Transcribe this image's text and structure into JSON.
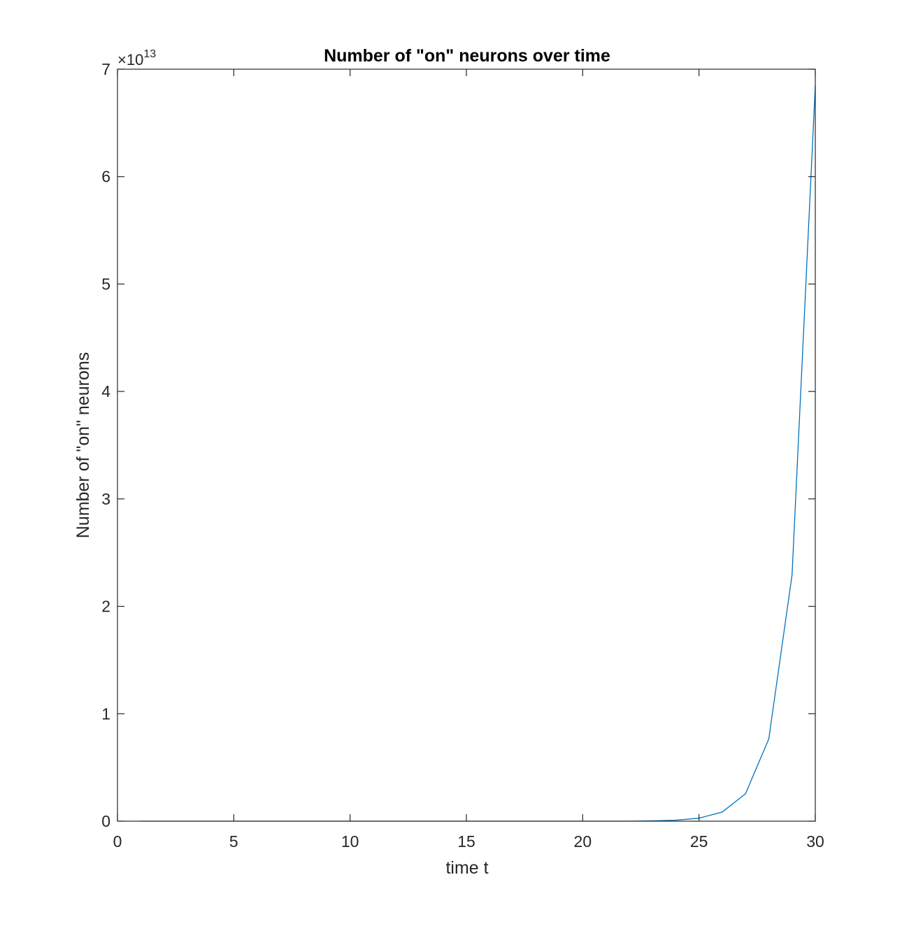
{
  "chart_data": {
    "type": "line",
    "title": "Number of \"on\" neurons over time",
    "xlabel": "time t",
    "ylabel": "Number of \"on\" neurons",
    "xlim": [
      0,
      30
    ],
    "ylim": [
      0,
      70000000000000
    ],
    "xticks": [
      0,
      5,
      10,
      15,
      20,
      25,
      30
    ],
    "xtick_labels": [
      "0",
      "5",
      "10",
      "15",
      "20",
      "25",
      "30"
    ],
    "yticks": [
      0,
      10000000000000,
      20000000000000,
      30000000000000,
      40000000000000,
      50000000000000,
      60000000000000,
      70000000000000
    ],
    "ytick_labels": [
      "0",
      "1",
      "2",
      "3",
      "4",
      "5",
      "6",
      "7"
    ],
    "y_exponent": {
      "prefix": "×10",
      "power": "13"
    },
    "grid": false,
    "box": true,
    "series": [
      {
        "color": "#0072bd",
        "x": [
          1,
          2,
          3,
          4,
          5,
          6,
          7,
          8,
          9,
          10,
          11,
          12,
          13,
          14,
          15,
          16,
          17,
          18,
          19,
          20,
          21,
          22,
          23,
          24,
          25,
          26,
          27,
          28,
          29,
          30
        ],
        "y": [
          0,
          0,
          0,
          0,
          0,
          0,
          0,
          0,
          0,
          0,
          0,
          0,
          0,
          0,
          0,
          0,
          0,
          0,
          0,
          0,
          0,
          0,
          30000000000,
          90000000000,
          280000000000,
          850000000000,
          2550000000000,
          7650000000000,
          22900000000000,
          68500000000000
        ]
      }
    ]
  }
}
